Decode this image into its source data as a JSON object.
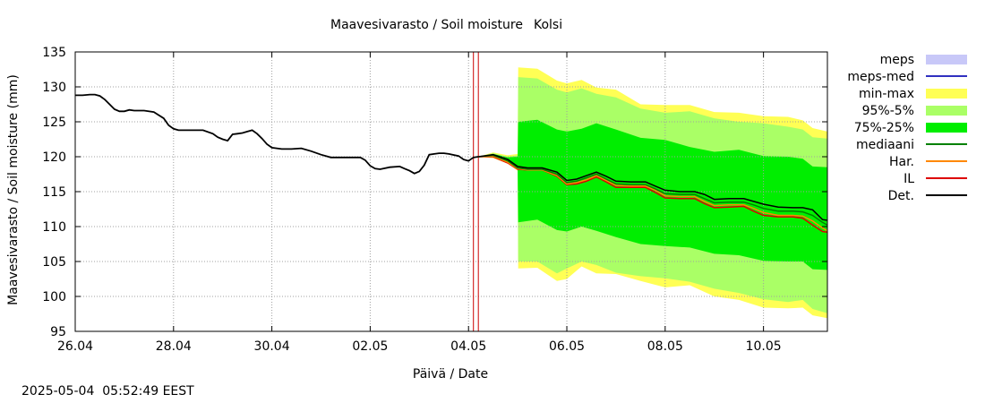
{
  "chart_data": {
    "type": "area",
    "title_left": "Maavesivarasto / Soil moisture",
    "title_right": "Kolsi",
    "xlabel": "Päivä / Date",
    "ylabel": "Maavesivarasto / Soil moisture (mm)",
    "ylim": [
      95,
      135
    ],
    "yticks": [
      95,
      100,
      105,
      110,
      115,
      120,
      125,
      130,
      135
    ],
    "xlim": [
      0,
      15.3
    ],
    "xticks": [
      {
        "x": 0,
        "label": "26.04"
      },
      {
        "x": 2,
        "label": "28.04"
      },
      {
        "x": 4,
        "label": "30.04"
      },
      {
        "x": 6,
        "label": "02.05"
      },
      {
        "x": 8,
        "label": "04.05"
      },
      {
        "x": 10,
        "label": "06.05"
      },
      {
        "x": 12,
        "label": "08.05"
      },
      {
        "x": 14,
        "label": "10.05"
      }
    ],
    "grid": true,
    "now_line_x": [
      8.1,
      8.2
    ],
    "colors": {
      "meps": "#c8c8f8",
      "meps_med": "#3030c0",
      "min_max": "#ffff55",
      "p95_5": "#aaff66",
      "p75_25": "#00ee00",
      "mediaani": "#008000",
      "har": "#ff8800",
      "il": "#dd0000",
      "det": "#000000",
      "now_line": "#cc0000"
    },
    "legend": [
      {
        "key": "meps",
        "label": "meps",
        "kind": "box"
      },
      {
        "key": "meps_med",
        "label": "meps-med",
        "kind": "line"
      },
      {
        "key": "min_max",
        "label": "min-max",
        "kind": "box"
      },
      {
        "key": "p95_5",
        "label": "95%-5%",
        "kind": "box"
      },
      {
        "key": "p75_25",
        "label": "75%-25%",
        "kind": "box"
      },
      {
        "key": "mediaani",
        "label": "mediaani",
        "kind": "line"
      },
      {
        "key": "har",
        "label": "Har.",
        "kind": "line"
      },
      {
        "key": "il",
        "label": "IL",
        "kind": "line"
      },
      {
        "key": "det",
        "label": "Det.",
        "kind": "line"
      }
    ],
    "observed": {
      "name": "Det.",
      "x": [
        0,
        0.15,
        0.3,
        0.4,
        0.5,
        0.6,
        0.7,
        0.8,
        0.9,
        1.0,
        1.1,
        1.2,
        1.4,
        1.6,
        1.8,
        1.9,
        2.0,
        2.1,
        2.2,
        2.4,
        2.6,
        2.8,
        2.9,
        3.0,
        3.1,
        3.2,
        3.3,
        3.4,
        3.5,
        3.6,
        3.7,
        3.8,
        3.9,
        4.0,
        4.2,
        4.4,
        4.6,
        4.8,
        5.0,
        5.2,
        5.4,
        5.6,
        5.8,
        5.9,
        6.0,
        6.1,
        6.2,
        6.4,
        6.6,
        6.7,
        6.8,
        6.9,
        7.0,
        7.1,
        7.2,
        7.3,
        7.4,
        7.5,
        7.6,
        7.8,
        7.9,
        8.0,
        8.1,
        8.2
      ],
      "values": [
        128.8,
        128.8,
        128.9,
        128.9,
        128.7,
        128.2,
        127.5,
        126.8,
        126.5,
        126.5,
        126.7,
        126.6,
        126.6,
        126.4,
        125.5,
        124.5,
        124.0,
        123.8,
        123.8,
        123.8,
        123.8,
        123.3,
        122.8,
        122.5,
        122.3,
        123.2,
        123.3,
        123.4,
        123.6,
        123.8,
        123.3,
        122.6,
        121.8,
        121.3,
        121.1,
        121.1,
        121.2,
        120.8,
        120.3,
        119.9,
        119.9,
        119.9,
        119.9,
        119.5,
        118.7,
        118.3,
        118.2,
        118.5,
        118.6,
        118.3,
        118.0,
        117.6,
        117.9,
        118.8,
        120.3,
        120.4,
        120.5,
        120.5,
        120.4,
        120.1,
        119.6,
        119.4,
        119.9,
        120.0
      ]
    },
    "forecast": {
      "x": [
        8.2,
        8.5,
        8.8,
        9.0,
        9.2,
        9.5,
        9.8,
        10.0,
        10.2,
        10.4,
        10.6,
        10.8,
        11.0,
        11.3,
        11.6,
        11.8,
        12.0,
        12.3,
        12.6,
        12.8,
        13.0,
        13.3,
        13.6,
        13.8,
        14.0,
        14.3,
        14.6,
        14.8,
        15.0,
        15.2,
        15.3
      ],
      "series": [
        {
          "key": "det",
          "name": "Det.",
          "values": [
            120.0,
            120.3,
            119.6,
            118.6,
            118.4,
            118.4,
            117.8,
            116.6,
            116.8,
            117.3,
            117.8,
            117.2,
            116.5,
            116.4,
            116.4,
            115.8,
            115.2,
            115.0,
            115.0,
            114.6,
            113.9,
            114.0,
            114.0,
            113.6,
            113.2,
            112.8,
            112.7,
            112.7,
            112.4,
            111.0,
            110.9
          ]
        },
        {
          "key": "mediaani",
          "name": "mediaani",
          "values": [
            120.0,
            120.2,
            119.4,
            118.4,
            118.2,
            118.2,
            117.5,
            116.3,
            116.5,
            117.0,
            117.5,
            116.8,
            116.1,
            116.0,
            116.0,
            115.4,
            114.7,
            114.6,
            114.6,
            114.0,
            113.4,
            113.5,
            113.5,
            113.1,
            112.6,
            112.2,
            112.2,
            112.1,
            111.6,
            110.6,
            110.2
          ]
        },
        {
          "key": "har",
          "name": "Har.",
          "values": [
            120.0,
            120.1,
            119.2,
            118.3,
            118.1,
            118.1,
            117.3,
            116.1,
            116.3,
            116.7,
            117.3,
            116.6,
            115.9,
            115.8,
            115.8,
            115.2,
            114.4,
            114.3,
            114.3,
            113.6,
            113.0,
            113.1,
            113.1,
            112.6,
            112.0,
            111.6,
            111.6,
            111.5,
            110.8,
            109.8,
            109.4
          ]
        },
        {
          "key": "il",
          "name": "IL",
          "values": [
            120.0,
            120.0,
            119.1,
            118.2,
            118.1,
            118.1,
            117.2,
            116.0,
            116.1,
            116.5,
            117.1,
            116.4,
            115.6,
            115.6,
            115.6,
            114.9,
            114.1,
            114.0,
            114.0,
            113.3,
            112.7,
            112.8,
            112.9,
            112.2,
            111.6,
            111.4,
            111.4,
            111.2,
            110.2,
            109.3,
            109.2
          ]
        }
      ],
      "bands": [
        {
          "key": "min_max",
          "name": "min-max",
          "x": [
            8.2,
            8.5,
            8.8,
            9.0,
            9.01,
            9.4,
            9.8,
            10.0,
            10.3,
            10.6,
            11.0,
            11.5,
            12.0,
            12.5,
            13.0,
            13.5,
            14.0,
            14.5,
            14.8,
            15.0,
            15.3
          ],
          "upper": [
            120.0,
            120.6,
            120.2,
            120.4,
            132.8,
            132.6,
            130.9,
            130.5,
            131.0,
            129.9,
            129.6,
            127.5,
            127.4,
            127.4,
            126.4,
            126.3,
            125.8,
            125.7,
            125.2,
            124.1,
            123.6
          ],
          "lower": [
            120.0,
            119.8,
            119.0,
            118.0,
            104.0,
            104.1,
            102.2,
            102.5,
            104.3,
            103.3,
            103.2,
            102.2,
            101.3,
            101.6,
            100.0,
            99.5,
            98.4,
            98.3,
            98.4,
            97.3,
            96.9
          ]
        },
        {
          "key": "p95_5",
          "name": "95%-5%",
          "x": [
            8.2,
            8.5,
            8.8,
            9.0,
            9.01,
            9.4,
            9.8,
            10.0,
            10.3,
            10.6,
            11.0,
            11.5,
            12.0,
            12.5,
            13.0,
            13.5,
            14.0,
            14.5,
            14.8,
            15.0,
            15.3
          ],
          "upper": [
            120.0,
            120.5,
            120.0,
            120.2,
            131.4,
            131.2,
            129.6,
            129.2,
            129.8,
            129.0,
            128.5,
            126.9,
            126.3,
            126.5,
            125.5,
            125.0,
            124.8,
            124.3,
            123.9,
            122.8,
            122.6
          ],
          "lower": [
            120.0,
            119.9,
            119.1,
            118.2,
            105.0,
            105.0,
            103.3,
            104.0,
            105.0,
            104.5,
            103.4,
            102.9,
            102.6,
            102.1,
            101.1,
            100.5,
            99.6,
            99.2,
            99.5,
            98.2,
            97.6
          ]
        },
        {
          "key": "p75_25",
          "name": "75%-25%",
          "x": [
            8.2,
            8.5,
            8.8,
            9.0,
            9.01,
            9.4,
            9.8,
            10.0,
            10.3,
            10.6,
            11.0,
            11.5,
            12.0,
            12.5,
            13.0,
            13.5,
            14.0,
            14.5,
            14.8,
            15.0,
            15.3
          ],
          "upper": [
            120.0,
            120.4,
            119.9,
            120.0,
            125.0,
            125.3,
            123.9,
            123.6,
            124.0,
            124.8,
            123.9,
            122.7,
            122.4,
            121.4,
            120.7,
            121.0,
            120.1,
            120.0,
            119.7,
            118.6,
            118.5
          ],
          "lower": [
            120.0,
            120.0,
            119.3,
            118.4,
            110.6,
            111.0,
            109.5,
            109.3,
            110.0,
            109.4,
            108.5,
            107.5,
            107.2,
            107.0,
            106.1,
            105.9,
            105.1,
            105.0,
            105.0,
            103.9,
            103.8
          ]
        }
      ]
    }
  },
  "footer": {
    "timestamp": "2025-05-04  05:52:49 EEST"
  }
}
